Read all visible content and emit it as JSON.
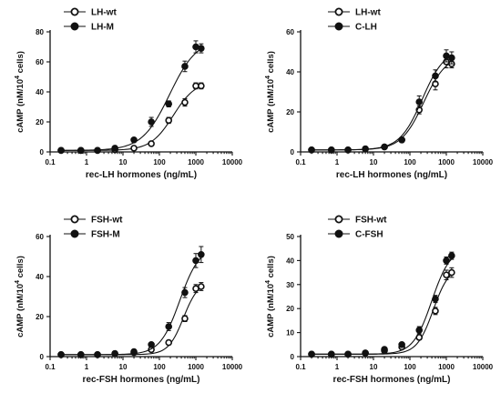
{
  "chart_data": [
    {
      "type": "scatter",
      "ylabel": "cAMP (nM/10",
      "ylabel_sup": "4",
      "ylabel_end": " cells)",
      "xlabel": "rec-LH hormones (ng/mL)",
      "xscale": "log",
      "xlim": [
        0.1,
        10000
      ],
      "xticks": [
        "0.1",
        "1",
        "10",
        "100",
        "1000",
        "10000"
      ],
      "ylim": [
        0,
        80
      ],
      "yticks": [
        "0",
        "20",
        "40",
        "60",
        "80"
      ],
      "legend_position": "top-left",
      "series": [
        {
          "name": "LH-wt",
          "marker": "open-circle",
          "x": [
            0.2,
            0.7,
            2,
            6,
            20,
            60,
            180,
            500,
            1000,
            1400
          ],
          "y": [
            1,
            1,
            1,
            1.5,
            2.5,
            5.5,
            21,
            33,
            44,
            44
          ],
          "err": [
            0.5,
            0.5,
            0.5,
            0.5,
            0.5,
            1,
            2,
            2.5,
            2,
            2
          ]
        },
        {
          "name": "LH-M",
          "marker": "filled-circle",
          "x": [
            0.2,
            0.7,
            2,
            6,
            20,
            60,
            180,
            500,
            1000,
            1400
          ],
          "y": [
            1,
            1,
            1,
            2.5,
            8,
            20,
            32,
            57,
            70,
            69
          ],
          "err": [
            0.5,
            0.5,
            0.5,
            0.8,
            1,
            3,
            2,
            3.5,
            4,
            3
          ]
        }
      ]
    },
    {
      "type": "scatter",
      "ylabel": "cAMP (nM/10",
      "ylabel_sup": "4",
      "ylabel_end": " cells)",
      "xlabel": "rec-LH hormones (ng/mL)",
      "xscale": "log",
      "xlim": [
        0.1,
        10000
      ],
      "xticks": [
        "0.1",
        "1",
        "10",
        "100",
        "1000",
        "10000"
      ],
      "ylim": [
        0,
        60
      ],
      "yticks": [
        "0",
        "20",
        "40",
        "60"
      ],
      "legend_position": "top-center",
      "series": [
        {
          "name": "LH-wt",
          "marker": "open-circle",
          "x": [
            0.2,
            0.7,
            2,
            6,
            20,
            60,
            180,
            500,
            1000,
            1400
          ],
          "y": [
            1,
            1,
            1,
            1.5,
            2.5,
            6,
            21,
            34,
            45,
            44
          ],
          "err": [
            0.5,
            0.5,
            0.5,
            0.5,
            0.5,
            1,
            2,
            3,
            3,
            2
          ]
        },
        {
          "name": "C-LH",
          "marker": "filled-circle",
          "x": [
            0.2,
            0.7,
            2,
            6,
            20,
            60,
            180,
            500,
            1000,
            1400
          ],
          "y": [
            1,
            1,
            1,
            1.5,
            2.5,
            6,
            25,
            38,
            48,
            47
          ],
          "err": [
            0.5,
            0.5,
            0.5,
            0.5,
            0.5,
            1,
            3,
            3,
            3,
            3
          ]
        }
      ]
    },
    {
      "type": "scatter",
      "ylabel": "cAMP (nM/10",
      "ylabel_sup": "4",
      "ylabel_end": " cells)",
      "xlabel": "rec-FSH hormones (ng/mL)",
      "xscale": "log",
      "xlim": [
        0.1,
        10000
      ],
      "xticks": [
        "0.1",
        "1",
        "10",
        "100",
        "1000",
        "10000"
      ],
      "ylim": [
        0,
        60
      ],
      "yticks": [
        "0",
        "20",
        "40",
        "60"
      ],
      "legend_position": "top-left",
      "series": [
        {
          "name": "FSH-wt",
          "marker": "open-circle",
          "x": [
            0.2,
            0.7,
            2,
            6,
            20,
            60,
            180,
            500,
            1000,
            1400
          ],
          "y": [
            1,
            1,
            1,
            1.5,
            2,
            3.5,
            7,
            19,
            34,
            35
          ],
          "err": [
            0.5,
            0.5,
            0.5,
            0.5,
            0.5,
            0.8,
            1,
            1.5,
            2,
            2
          ]
        },
        {
          "name": "FSH-M",
          "marker": "filled-circle",
          "x": [
            0.2,
            0.7,
            2,
            6,
            20,
            60,
            180,
            500,
            1000,
            1400
          ],
          "y": [
            1,
            1,
            1,
            1.5,
            2.5,
            6,
            15,
            32,
            48,
            51
          ],
          "err": [
            0.5,
            0.5,
            0.5,
            0.5,
            0.5,
            1,
            2,
            2.5,
            3.5,
            4
          ]
        }
      ]
    },
    {
      "type": "scatter",
      "ylabel": "cAMP (nM/10",
      "ylabel_sup": "4",
      "ylabel_end": " cells)",
      "xlabel": "rec-FSH hormones (ng/mL)",
      "xscale": "log",
      "xlim": [
        0.1,
        10000
      ],
      "xticks": [
        "0.1",
        "1",
        "10",
        "100",
        "1000",
        "10000"
      ],
      "ylim": [
        0,
        50
      ],
      "yticks": [
        "0",
        "10",
        "20",
        "30",
        "40",
        "50"
      ],
      "legend_position": "top-center",
      "series": [
        {
          "name": "FSH-wt",
          "marker": "open-circle",
          "x": [
            0.2,
            0.7,
            2,
            6,
            20,
            60,
            180,
            500,
            1000,
            1400
          ],
          "y": [
            1,
            1,
            1,
            1.5,
            2.5,
            4,
            8,
            19,
            34,
            35
          ],
          "err": [
            0.5,
            0.5,
            0.5,
            0.5,
            0.5,
            0.8,
            1,
            1.5,
            2,
            2
          ]
        },
        {
          "name": "C-FSH",
          "marker": "filled-circle",
          "x": [
            0.2,
            0.7,
            2,
            6,
            20,
            60,
            180,
            500,
            1000,
            1400
          ],
          "y": [
            1,
            1,
            1,
            1.5,
            3,
            5,
            11,
            24,
            40,
            42
          ],
          "err": [
            0.5,
            0.5,
            0.5,
            0.5,
            0.5,
            0.8,
            1.5,
            1.5,
            1.5,
            1.5
          ]
        }
      ]
    }
  ]
}
